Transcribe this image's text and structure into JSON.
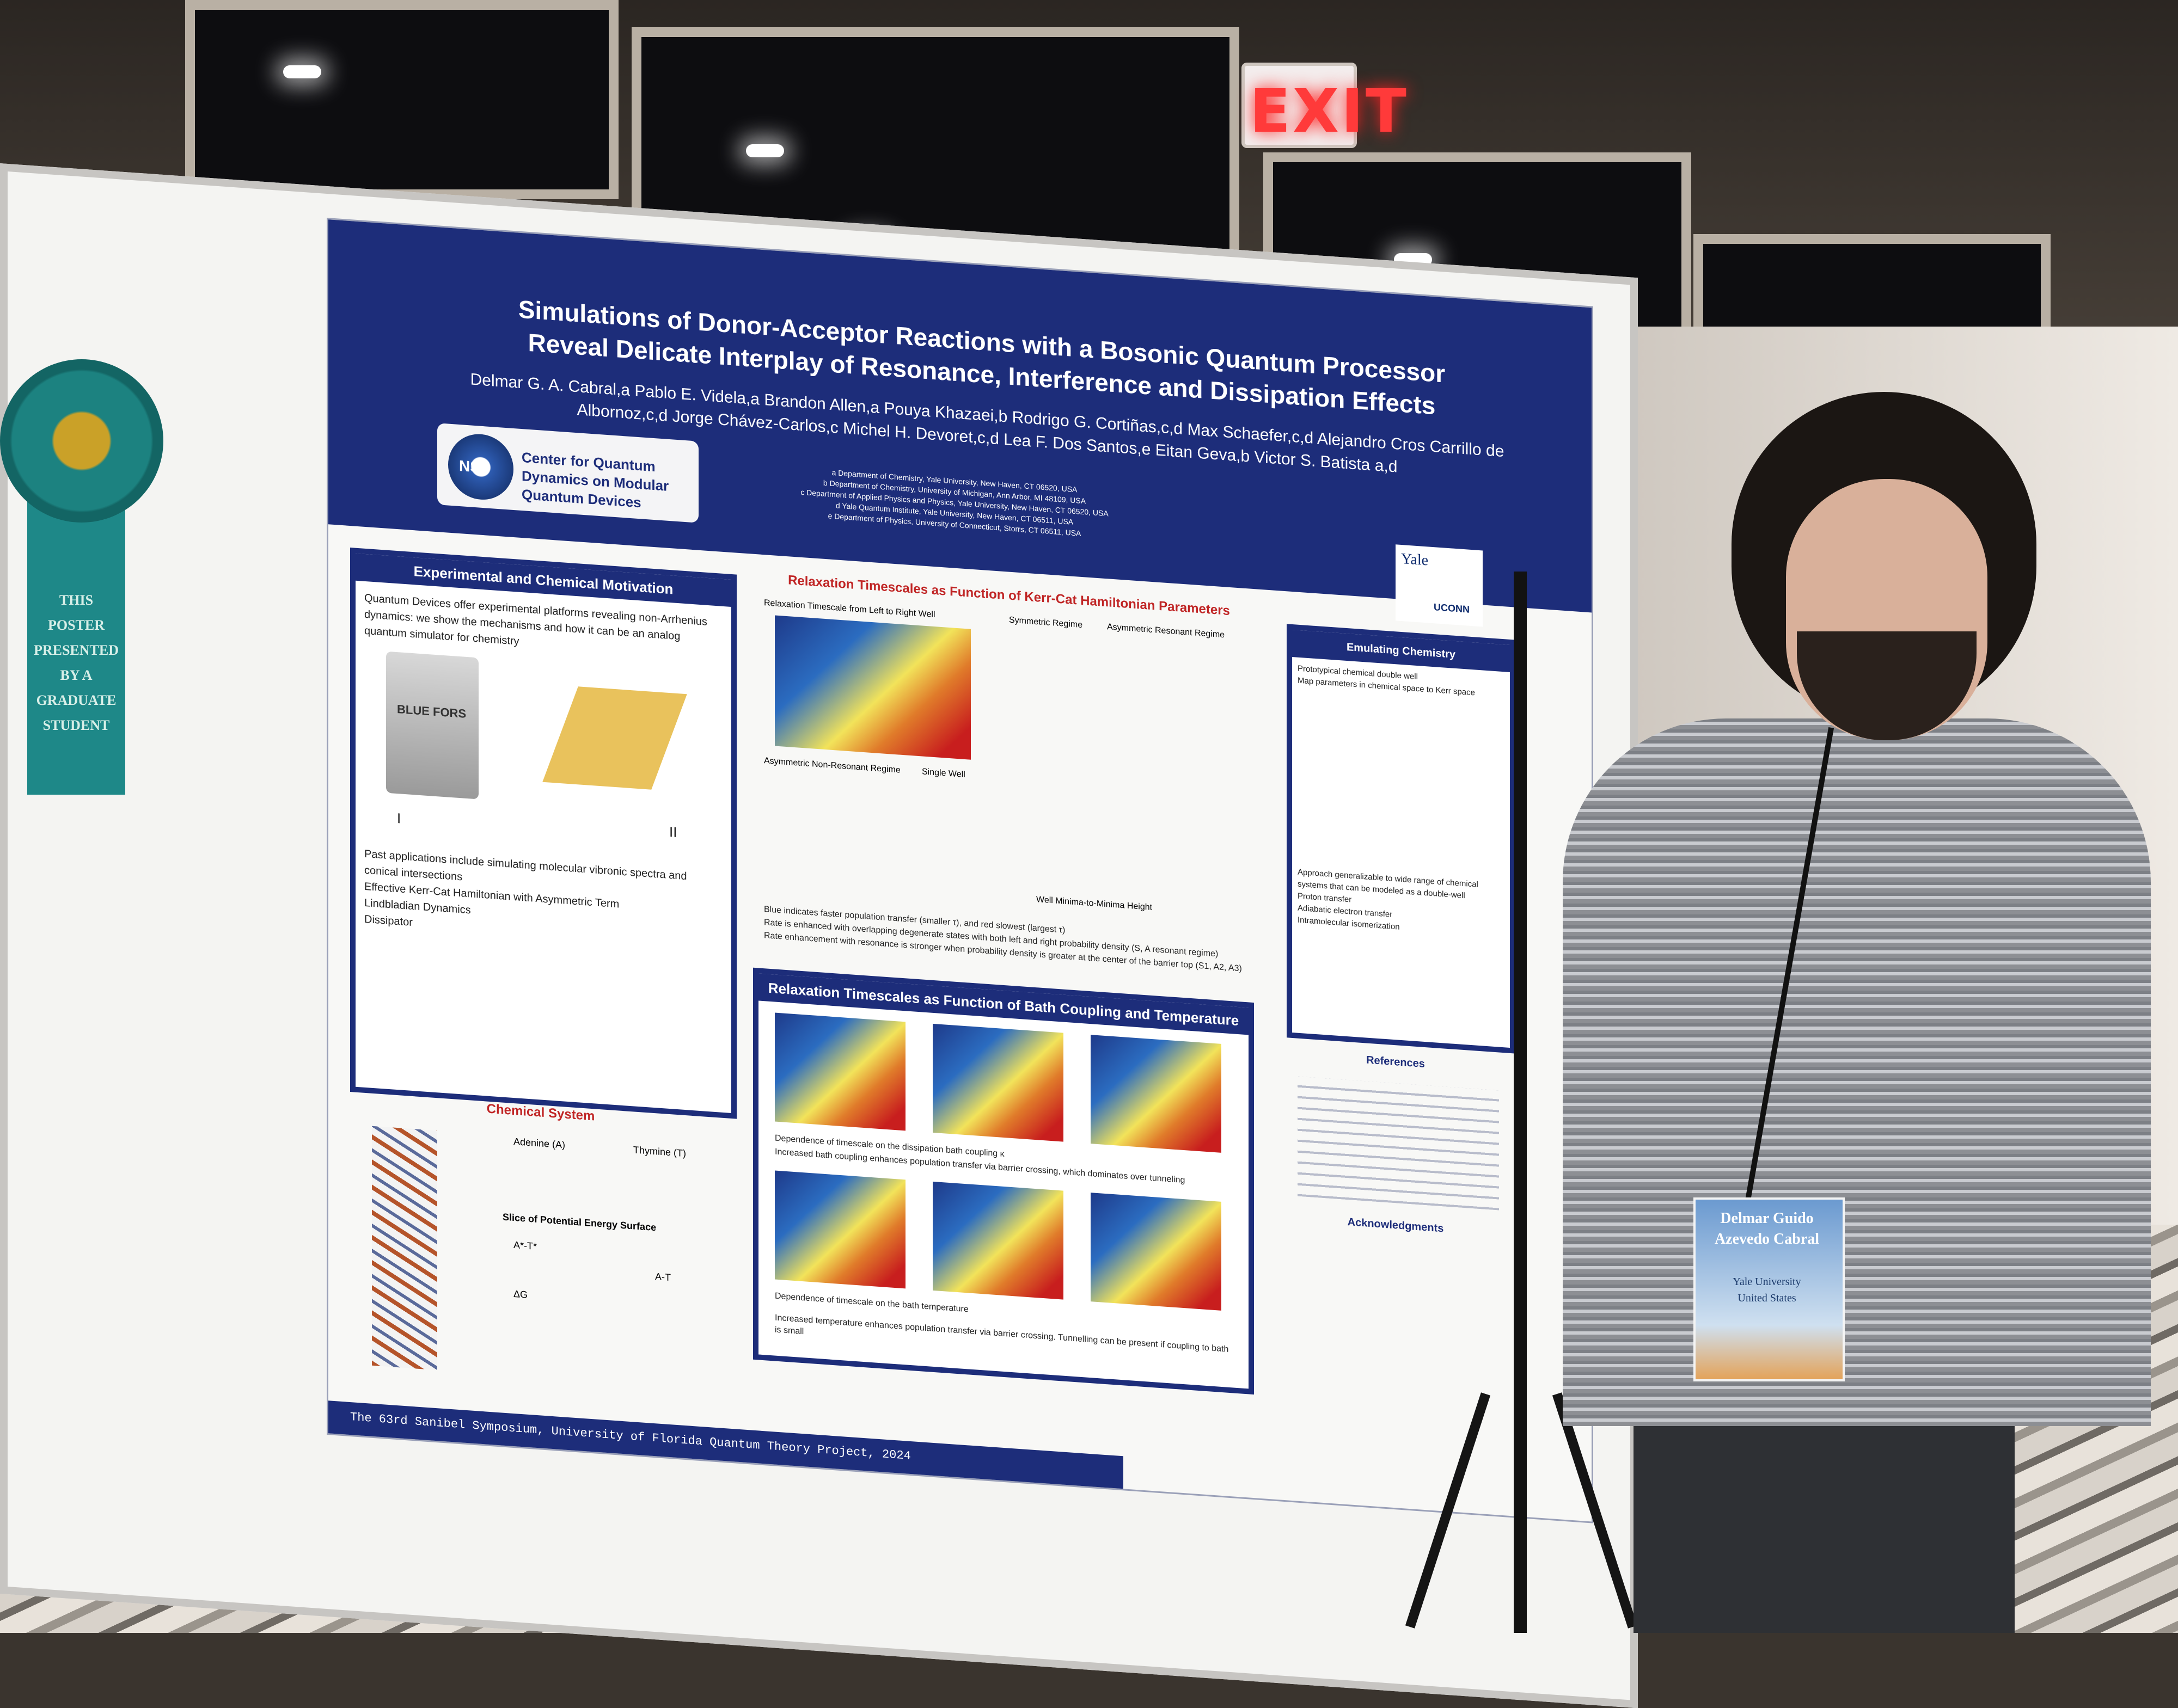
{
  "scene": {
    "exit_sign": "EXIT"
  },
  "ribbon": {
    "text": "THIS POSTER PRESENTED BY A GRADUATE STUDENT"
  },
  "poster": {
    "title": "Simulations of Donor-Acceptor Reactions with a Bosonic Quantum Processor Reveal Delicate Interplay of Resonance, Interference and Dissipation Effects",
    "authors": "Delmar G. A. Cabral,a Pablo E. Videla,a Brandon Allen,a Pouya Khazaei,b Rodrigo G. Cortiñas,c,d Max Schaefer,c,d Alejandro Cros Carrillo de Albornoz,c,d Jorge Chávez-Carlos,c Michel H. Devoret,c,d Lea F. Dos Santos,e Eitan Geva,b Victor S. Batista a,d",
    "affiliations": [
      "a Department of Chemistry, Yale University, New Haven, CT 06520, USA",
      "b Department of Chemistry, University of Michigan, Ann Arbor, MI 48109, USA",
      "c Department of Applied Physics and Physics, Yale University, New Haven, CT 06520, USA",
      "d Yale Quantum Institute, Yale University, New Haven, CT 06511, USA",
      "e Department of Physics, University of Connecticut, Storrs, CT 06511, USA"
    ],
    "nsf_center": "Center for Quantum Dynamics on Modular Quantum Devices",
    "nsf_logo": "NSF",
    "logos": [
      "Yale",
      "UCONN"
    ],
    "sections": {
      "motivation": {
        "heading": "Experimental and Chemical Motivation",
        "bullets": [
          "Quantum Devices offer experimental platforms revealing non-Arrhenius dynamics: we show the mechanisms and how it can be an analog quantum simulator for chemistry",
          "Past applications include simulating molecular vibronic spectra and conical intersections",
          "Effective Kerr-Cat Hamiltonian with Asymmetric Term",
          "Lindbladian Dynamics",
          "Dissipator"
        ],
        "figure_labels": [
          "I",
          "II",
          "BLUE FORS"
        ]
      },
      "chemical_system": {
        "heading": "Chemical System",
        "labels": [
          "Adenine (A)",
          "Thymine (T)",
          "Slice of Potential Energy Surface",
          "A*-T*",
          "A-T",
          "ΔG"
        ]
      },
      "kerr_cat": {
        "heading": "Relaxation Timescales as Function of Kerr-Cat Hamiltonian Parameters",
        "subplots": [
          "Relaxation Timescale from Left to Right Well",
          "Symmetric Regime",
          "Asymmetric Resonant Regime",
          "Asymmetric Non-Resonant Regime",
          "Single Well"
        ],
        "axis_label": "Well Minima-to-Minima Height",
        "bullets": [
          "Blue indicates faster population transfer (smaller τ), and red slowest (largest τ)",
          "Rate is enhanced with overlapping degenerate states with both left and right probability density (S, A resonant regime)",
          "Rate enhancement with resonance is stronger when probability density is greater at the center of the barrier top (S1, A2, A3)"
        ]
      },
      "bath": {
        "heading": "Relaxation Timescales as Function of Bath Coupling and Temperature",
        "bullets": [
          "Dependence of timescale on the dissipation bath coupling κ",
          "Increased bath coupling enhances population transfer via barrier crossing, which dominates over tunneling",
          "Dependence of timescale on the bath temperature",
          "Increased temperature enhances population transfer via barrier crossing. Tunnelling can be present if coupling to bath is small"
        ]
      },
      "emulating": {
        "heading": "Emulating Chemistry",
        "bullets": [
          "Prototypical chemical double well",
          "Map parameters in chemical space to Kerr space",
          "Approach generalizable to wide range of chemical systems that can be modeled as a double-well"
        ],
        "examples": [
          "Proton transfer",
          "Adiabatic electron transfer",
          "Intramolecular isomerization"
        ]
      },
      "references": {
        "heading": "References"
      },
      "acknowledgments": {
        "heading": "Acknowledgments"
      }
    },
    "footer": "The 63rd Sanibel Symposium, University of Florida Quantum Theory Project, 2024"
  },
  "badge": {
    "name": "Delmar Guido Azevedo Cabral",
    "org": "Yale University",
    "country": "United States"
  },
  "colors": {
    "poster_blue": "#1d2d7a",
    "section_red": "#c02525",
    "ribbon_teal": "#1e8888",
    "exit_red": "#ff3a3a"
  }
}
